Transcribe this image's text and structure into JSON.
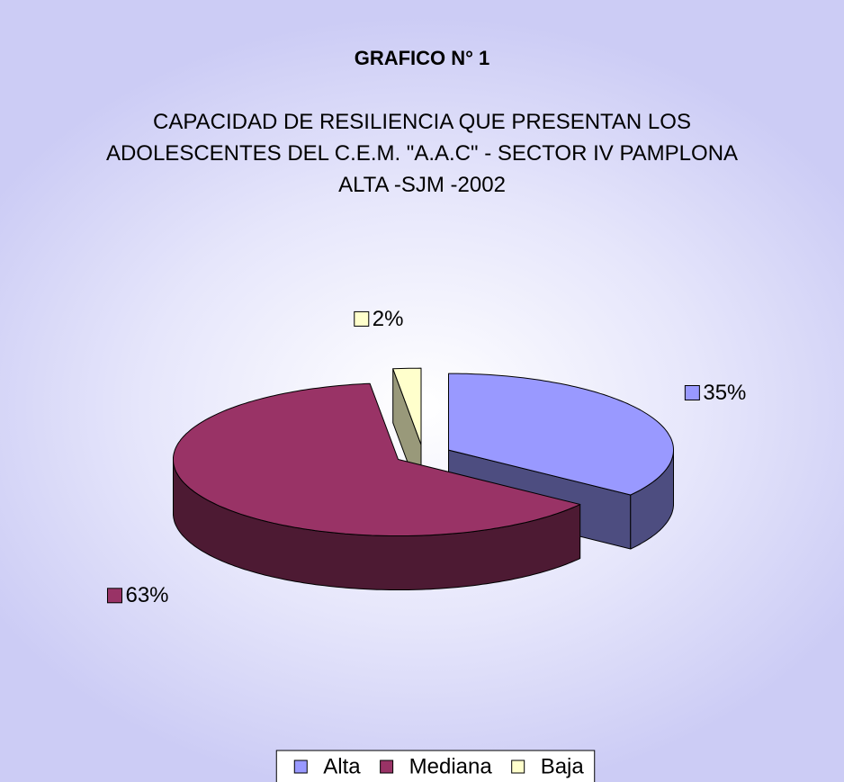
{
  "chart_data": {
    "type": "pie3d",
    "title": "GRAFICO N° 1",
    "subtitle": "CAPACIDAD DE RESILIENCIA QUE PRESENTAN LOS ADOLESCENTES DEL C.E.M. \"A.A.C\" - SECTOR IV PAMPLONA ALTA -SJM -2002",
    "categories": [
      "Alta",
      "Mediana",
      "Baja"
    ],
    "values": [
      35,
      63,
      2
    ],
    "value_labels": [
      "35%",
      "63%",
      "2%"
    ],
    "colors": [
      "#9999ff",
      "#993366",
      "#ffffcc"
    ],
    "legend": "bottom"
  }
}
